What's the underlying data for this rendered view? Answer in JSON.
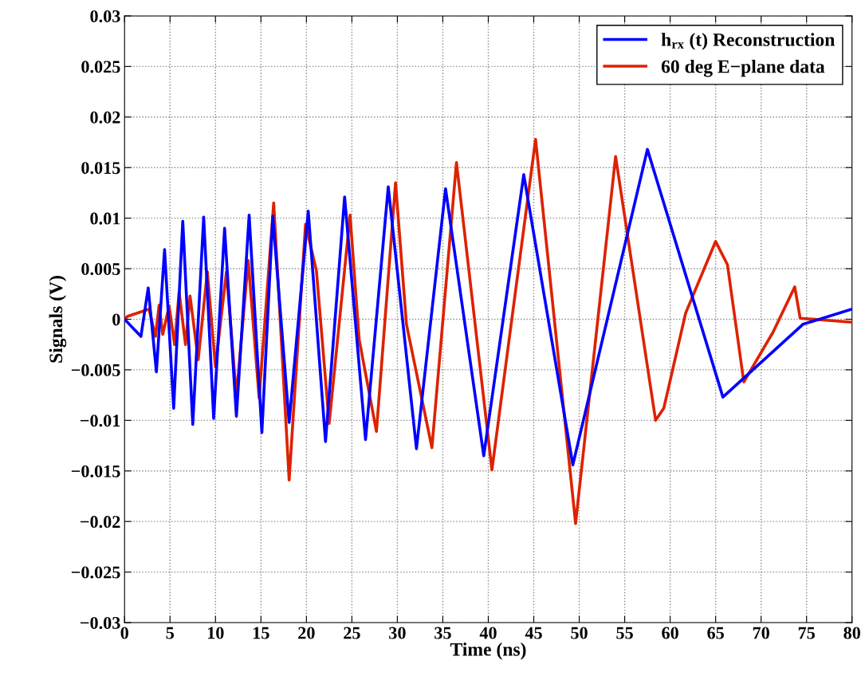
{
  "chart_data": {
    "type": "line",
    "xlabel": "Time (ns)",
    "ylabel": "Signals (V)",
    "xlim": [
      0,
      80
    ],
    "xticks": [
      0,
      5,
      10,
      15,
      20,
      25,
      30,
      35,
      40,
      45,
      50,
      55,
      60,
      65,
      70,
      75,
      80
    ],
    "ylim": [
      -0.03,
      0.03
    ],
    "yticks": [
      -0.03,
      -0.025,
      -0.02,
      -0.015,
      -0.01,
      -0.005,
      0,
      0.005,
      0.01,
      0.015,
      0.02,
      0.025,
      0.03
    ],
    "grid": true,
    "legend": "top right",
    "line_style": "solid",
    "marker": "none",
    "series": [
      {
        "name": "h$_{rx}$ (t) Reconstruction",
        "color": "#0000ff",
        "x": [
          0,
          1.8,
          2.6,
          3.5,
          4.4,
          5.4,
          6.4,
          7.5,
          8.7,
          9.8,
          11.0,
          12.3,
          13.7,
          15.1,
          16.3,
          18.1,
          20.2,
          22.1,
          24.2,
          26.5,
          29.0,
          32.1,
          35.3,
          39.5,
          43.9,
          49.3,
          57.5,
          65.8,
          74.6,
          80
        ],
        "values": [
          0,
          -0.0017,
          0.0031,
          -0.0052,
          0.0069,
          -0.0088,
          0.0097,
          -0.0104,
          0.0101,
          -0.0098,
          0.009,
          -0.0096,
          0.0103,
          -0.0112,
          0.0102,
          -0.0102,
          0.0107,
          -0.0121,
          0.0121,
          -0.0119,
          0.0131,
          -0.0128,
          0.0129,
          -0.0135,
          0.0143,
          -0.0144,
          0.0168,
          -0.0077,
          -0.0005,
          0.001
        ]
      },
      {
        "name": "60 deg E−plane data",
        "color": "#dd2200",
        "x": [
          0,
          0.35,
          2.7,
          3.4,
          3.8,
          4.2,
          4.9,
          5.5,
          6.0,
          6.7,
          7.2,
          8.1,
          9.1,
          10.0,
          11.2,
          12.3,
          13.6,
          14.8,
          16.4,
          18.1,
          19.9,
          21.1,
          22.5,
          24.8,
          25.8,
          27.7,
          29.8,
          31.0,
          33.8,
          36.5,
          40.4,
          45.2,
          49.6,
          54.0,
          58.4,
          59.3,
          61.7,
          65.0,
          66.3,
          68.1,
          71.3,
          73.7,
          74.3,
          80
        ],
        "values": [
          0,
          0.0003,
          0.001,
          -0.0017,
          0.0014,
          -0.0015,
          0.0013,
          -0.0025,
          0.0027,
          -0.0025,
          0.0023,
          -0.004,
          0.0047,
          -0.0047,
          0.0047,
          -0.0076,
          0.0058,
          -0.0078,
          0.0115,
          -0.0159,
          0.0094,
          0.0048,
          -0.0103,
          0.0103,
          -0.002,
          -0.0111,
          0.0135,
          -0.0005,
          -0.0127,
          0.0155,
          -0.0149,
          0.0178,
          -0.0202,
          0.0161,
          -0.01,
          -0.0088,
          0.0006,
          0.0077,
          0.0054,
          -0.0062,
          -0.0013,
          0.0032,
          0.0001,
          -0.0003
        ]
      }
    ]
  }
}
